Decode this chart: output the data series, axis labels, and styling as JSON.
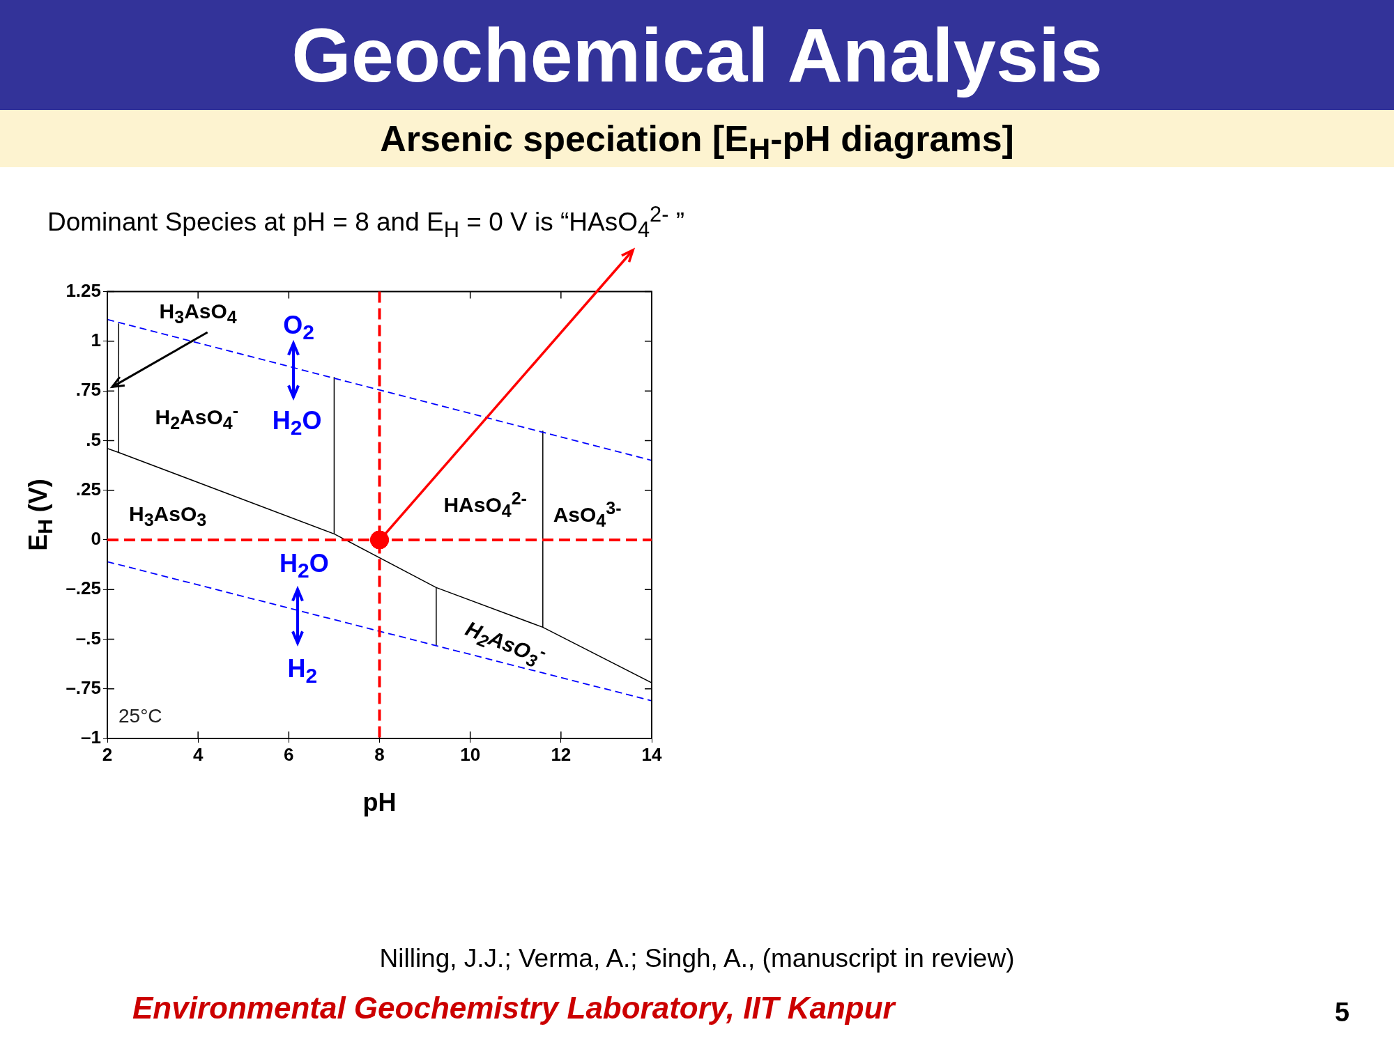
{
  "chart_data": {
    "type": "line",
    "title": "Geochemical Analysis",
    "subtitle": "Arsenic speciation [E$_{H}$-pH diagrams]",
    "xlabel": "pH",
    "ylabel": "E$_{H}$ (V)",
    "xlim": [
      2,
      14
    ],
    "xticks": [
      2,
      4,
      6,
      8,
      10,
      12,
      14
    ],
    "ylim": [
      -1,
      1.25
    ],
    "yticks": [
      {
        "value": -1,
        "label": "–1"
      },
      {
        "value": -0.75,
        "label": "–.75"
      },
      {
        "value": -0.5,
        "label": "–.5"
      },
      {
        "value": -0.25,
        "label": "–.25"
      },
      0,
      {
        "value": 0.25,
        "label": ".25"
      },
      {
        "value": 0.5,
        "label": ".5"
      },
      {
        "value": 0.75,
        "label": ".75"
      },
      1,
      1.25
    ],
    "grid": false,
    "legend": false,
    "series": [
      {
        "type": "line",
        "x": [
          2,
          14
        ],
        "values": [
          1.11,
          0.4
        ],
        "color": "#0000ff",
        "line_style": "dashed",
        "marker": "none"
      },
      {
        "type": "line",
        "x": [
          2,
          14
        ],
        "values": [
          -0.11,
          -0.81
        ],
        "color": "#0000ff",
        "line_style": "dashed",
        "marker": "none"
      },
      {
        "type": "line",
        "x": [
          2,
          2.25,
          7,
          9.25,
          11.6,
          14
        ],
        "values": [
          0.46,
          0.44,
          0.03,
          -0.24,
          -0.44,
          -0.72
        ],
        "color": "#000000",
        "line_style": "solid",
        "marker": "none"
      },
      {
        "type": "line",
        "x": [
          2.25,
          2.25
        ],
        "values": [
          0.44,
          1.09
        ],
        "color": "#000000",
        "line_style": "solid",
        "marker": "none"
      },
      {
        "type": "line",
        "x": [
          7,
          7
        ],
        "values": [
          0.03,
          0.82
        ],
        "color": "#000000",
        "line_style": "solid",
        "marker": "none"
      },
      {
        "type": "line",
        "x": [
          9.25,
          9.25
        ],
        "values": [
          -0.24,
          -0.53
        ],
        "color": "#000000",
        "line_style": "solid",
        "marker": "none"
      },
      {
        "type": "line",
        "x": [
          11.6,
          11.6
        ],
        "values": [
          -0.44,
          0.55
        ],
        "color": "#000000",
        "line_style": "solid",
        "marker": "none"
      },
      {
        "type": "scatter",
        "x": [
          8
        ],
        "values": [
          0
        ],
        "color": "#ff0000",
        "marker": "circle"
      }
    ],
    "ref_lines": [
      {
        "axis": "x",
        "value": 8,
        "color": "#ff0000",
        "line_style": "dashed"
      },
      {
        "axis": "y",
        "value": 0,
        "color": "#ff0000",
        "line_style": "dashed"
      }
    ],
    "annotations": [
      "Dominant Species at pH = 8 and E$_{H}$ = 0 V  is “HAsO$_{4}$$^{2-}$ ”",
      "25°C",
      "Nilling, J.J.; Verma, A.; Singh, A., (manuscript in review)",
      "Environmental Geochemistry Laboratory, IIT Kanpur",
      "5",
      "H$_{3}$AsO$_{4}$",
      "H$_{2}$AsO$_{4}$$^{-}$",
      "O$_{2}$",
      "H$_{2}$O",
      "H$_{3}$AsO$_{3}$",
      "HAsO$_{4}$$^{2-}$",
      "AsO$_{4}$$^{3-}$",
      "H$_{2}$O",
      "H$_{2}$",
      "H$_{2}$AsO$_{3}$$^{-}$"
    ]
  }
}
